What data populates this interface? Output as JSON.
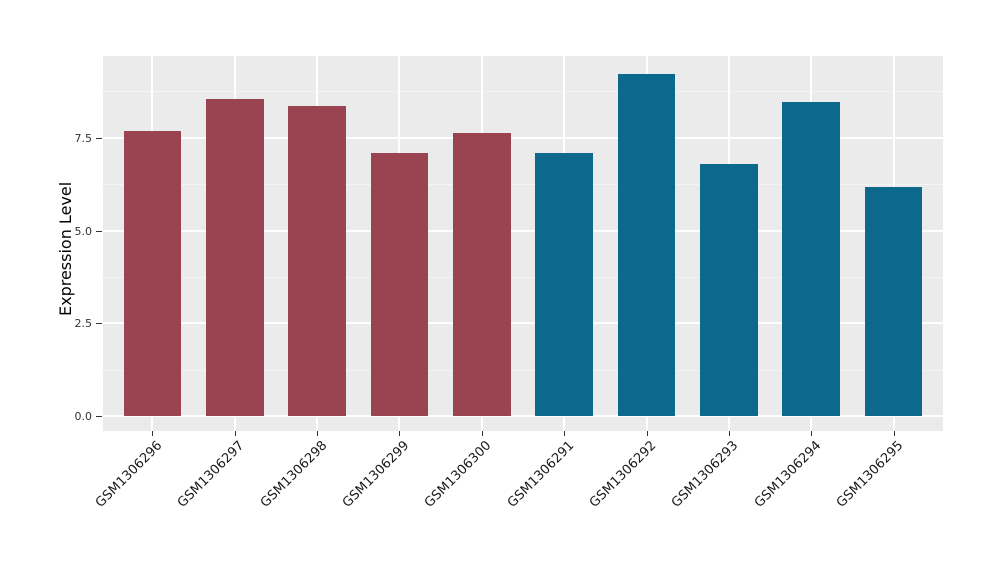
{
  "figure": {
    "background_color": "#FFFFFF",
    "panel_background_color": "#EBEBEB",
    "grid_major_color": "#FFFFFF",
    "grid_minor_color": "#F4F4F4",
    "tick_mark_color": "#333333",
    "axis_text_color": "#333333",
    "x_label_color": "#1A1A1A"
  },
  "chart_data": {
    "type": "bar",
    "title": "",
    "xlabel": "",
    "ylabel": "Expression Level",
    "legend": "none",
    "grid": true,
    "ylim": [
      -0.4,
      9.7
    ],
    "categories": [
      "GSM1306296",
      "GSM1306297",
      "GSM1306298",
      "GSM1306299",
      "GSM1306300",
      "GSM1306291",
      "GSM1306292",
      "GSM1306293",
      "GSM1306294",
      "GSM1306295"
    ],
    "bars": [
      {
        "label": "GSM1306296",
        "value": 7.68,
        "group": "maroon"
      },
      {
        "label": "GSM1306297",
        "value": 8.54,
        "group": "maroon"
      },
      {
        "label": "GSM1306298",
        "value": 8.35,
        "group": "maroon"
      },
      {
        "label": "GSM1306299",
        "value": 7.08,
        "group": "maroon"
      },
      {
        "label": "GSM1306300",
        "value": 7.62,
        "group": "maroon"
      },
      {
        "label": "GSM1306291",
        "value": 7.08,
        "group": "teal"
      },
      {
        "label": "GSM1306292",
        "value": 9.21,
        "group": "teal"
      },
      {
        "label": "GSM1306293",
        "value": 6.79,
        "group": "teal"
      },
      {
        "label": "GSM1306294",
        "value": 8.46,
        "group": "teal"
      },
      {
        "label": "GSM1306295",
        "value": 6.17,
        "group": "teal"
      }
    ],
    "group_colors": {
      "maroon": "#9B4451",
      "teal": "#0C688C"
    },
    "series": [
      {
        "name": "maroon-group",
        "color": "#9B4451",
        "categories": [
          "GSM1306296",
          "GSM1306297",
          "GSM1306298",
          "GSM1306299",
          "GSM1306300"
        ],
        "values": [
          7.68,
          8.54,
          8.35,
          7.08,
          7.62
        ]
      },
      {
        "name": "teal-group",
        "color": "#0C688C",
        "categories": [
          "GSM1306291",
          "GSM1306292",
          "GSM1306293",
          "GSM1306294",
          "GSM1306295"
        ],
        "values": [
          7.08,
          9.21,
          6.79,
          8.46,
          6.17
        ]
      }
    ],
    "yticks": [
      {
        "value": 0.0,
        "label": "0.0"
      },
      {
        "value": 2.5,
        "label": "2.5"
      },
      {
        "value": 5.0,
        "label": "5.0"
      },
      {
        "value": 7.5,
        "label": "7.5"
      }
    ],
    "y_minor_ticks": [
      1.25,
      3.75,
      6.25,
      8.75
    ]
  }
}
